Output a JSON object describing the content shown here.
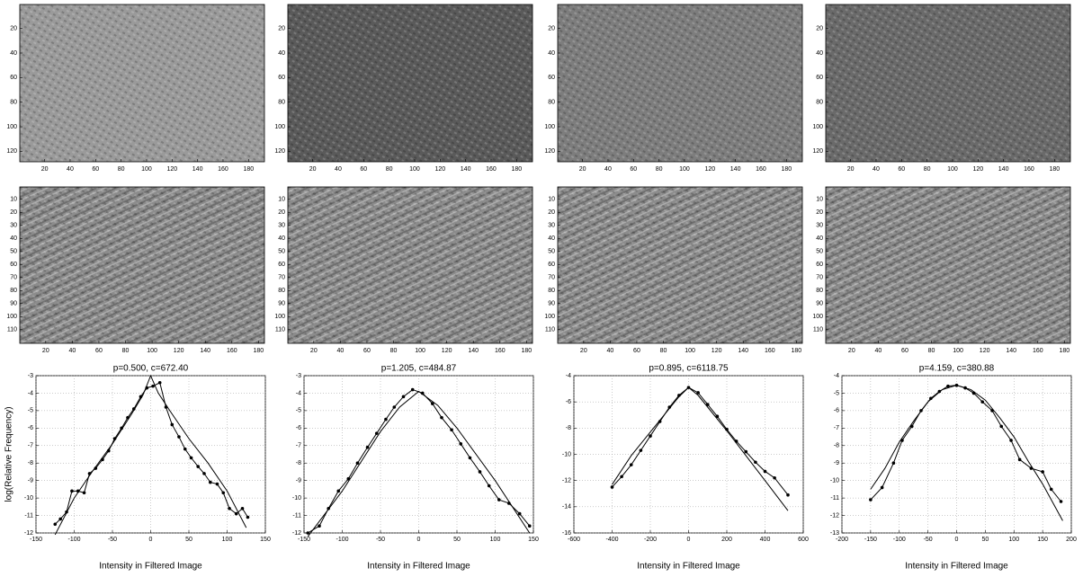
{
  "chart_data": [
    {
      "type": "image",
      "color": "#9a9a9a",
      "xlim": [
        0.5,
        192.5
      ],
      "ylim": [
        0.5,
        128.5
      ],
      "xticks": [
        20,
        40,
        60,
        80,
        100,
        120,
        140,
        160,
        180
      ],
      "yticks": [
        20,
        40,
        60,
        80,
        100,
        120
      ]
    },
    {
      "type": "image",
      "color": "#5a5a5a",
      "xlim": [
        0.5,
        192.5
      ],
      "ylim": [
        0.5,
        128.5
      ],
      "xticks": [
        20,
        40,
        60,
        80,
        100,
        120,
        140,
        160,
        180
      ],
      "yticks": [
        20,
        40,
        60,
        80,
        100,
        120
      ]
    },
    {
      "type": "image",
      "color": "#7d7d7d",
      "xlim": [
        0.5,
        192.5
      ],
      "ylim": [
        0.5,
        128.5
      ],
      "xticks": [
        20,
        40,
        60,
        80,
        100,
        120,
        140,
        160,
        180
      ],
      "yticks": [
        20,
        40,
        60,
        80,
        100,
        120
      ]
    },
    {
      "type": "image",
      "color": "#6a6a6a",
      "xlim": [
        0.5,
        192.5
      ],
      "ylim": [
        0.5,
        128.5
      ],
      "xticks": [
        20,
        40,
        60,
        80,
        100,
        120,
        140,
        160,
        180
      ],
      "yticks": [
        20,
        40,
        60,
        80,
        100,
        120
      ]
    },
    {
      "type": "image",
      "color": "#8c8c8c",
      "xlim": [
        0.5,
        184.5
      ],
      "ylim": [
        0.5,
        120.5
      ],
      "xticks": [
        20,
        40,
        60,
        80,
        100,
        120,
        140,
        160,
        180
      ],
      "yticks": [
        10,
        20,
        30,
        40,
        50,
        60,
        70,
        80,
        90,
        100,
        110
      ]
    },
    {
      "type": "image",
      "color": "#8c8c8c",
      "xlim": [
        0.5,
        184.5
      ],
      "ylim": [
        0.5,
        120.5
      ],
      "xticks": [
        20,
        40,
        60,
        80,
        100,
        120,
        140,
        160,
        180
      ],
      "yticks": [
        10,
        20,
        30,
        40,
        50,
        60,
        70,
        80,
        90,
        100,
        110
      ]
    },
    {
      "type": "image",
      "color": "#8c8c8c",
      "xlim": [
        0.5,
        184.5
      ],
      "ylim": [
        0.5,
        120.5
      ],
      "xticks": [
        20,
        40,
        60,
        80,
        100,
        120,
        140,
        160,
        180
      ],
      "yticks": [
        10,
        20,
        30,
        40,
        50,
        60,
        70,
        80,
        90,
        100,
        110
      ]
    },
    {
      "type": "image",
      "color": "#8c8c8c",
      "xlim": [
        0.5,
        184.5
      ],
      "ylim": [
        0.5,
        120.5
      ],
      "xticks": [
        20,
        40,
        60,
        80,
        100,
        120,
        140,
        160,
        180
      ],
      "yticks": [
        10,
        20,
        30,
        40,
        50,
        60,
        70,
        80,
        90,
        100,
        110
      ]
    },
    {
      "type": "line",
      "title": "p=0.500, c=672.40",
      "x_label": "Intensity in Filtered Image",
      "y_label": "log(Relative Frequency)",
      "grid": true,
      "xlim": [
        -150,
        150
      ],
      "xticks": [
        -150,
        -100,
        -50,
        0,
        50,
        100,
        150
      ],
      "ylim": [
        -12,
        -3
      ],
      "yticks": [
        -12,
        -11,
        -10,
        -9,
        -8,
        -7,
        -6,
        -5,
        -4,
        -3
      ],
      "series": [
        {
          "color": "#000000",
          "markers": true,
          "x": [
            -125,
            -118,
            -110,
            -103,
            -95,
            -87,
            -80,
            -72,
            -63,
            -55,
            -47,
            -38,
            -30,
            -22,
            -13,
            -5,
            3,
            12,
            20,
            28,
            37,
            45,
            53,
            62,
            70,
            78,
            87,
            95,
            103,
            112,
            120,
            127
          ],
          "values": [
            -11.5,
            -11.2,
            -10.8,
            -9.6,
            -9.6,
            -9.7,
            -8.6,
            -8.3,
            -7.8,
            -7.3,
            -6.6,
            -6.0,
            -5.4,
            -4.9,
            -4.2,
            -3.7,
            -3.6,
            -3.4,
            -4.8,
            -5.8,
            -6.5,
            -7.2,
            -7.7,
            -8.2,
            -8.6,
            -9.1,
            -9.2,
            -9.7,
            -10.6,
            -10.9,
            -10.6,
            -11.1
          ]
        },
        {
          "color": "#000000",
          "markers": false,
          "x": [
            -125,
            -100,
            -75,
            -50,
            -25,
            -10,
            0,
            10,
            25,
            50,
            75,
            100,
            125
          ],
          "values": [
            -12.1,
            -10.0,
            -8.4,
            -6.9,
            -5.2,
            -4.1,
            -3.0,
            -4.0,
            -5.0,
            -6.6,
            -8.0,
            -9.6,
            -11.7
          ]
        }
      ]
    },
    {
      "type": "line",
      "title": "p=1.205, c=484.87",
      "x_label": "Intensity in Filtered Image",
      "grid": true,
      "xlim": [
        -150,
        150
      ],
      "xticks": [
        -150,
        -100,
        -50,
        0,
        50,
        100,
        150
      ],
      "ylim": [
        -12,
        -3
      ],
      "yticks": [
        -12,
        -11,
        -10,
        -9,
        -8,
        -7,
        -6,
        -5,
        -4,
        -3
      ],
      "series": [
        {
          "color": "#000000",
          "markers": true,
          "x": [
            -145,
            -130,
            -118,
            -105,
            -92,
            -80,
            -67,
            -55,
            -43,
            -32,
            -20,
            -8,
            5,
            18,
            30,
            43,
            55,
            67,
            80,
            92,
            105,
            118,
            132,
            145
          ],
          "values": [
            -12.0,
            -11.6,
            -10.6,
            -9.6,
            -8.9,
            -8.0,
            -7.1,
            -6.3,
            -5.5,
            -4.8,
            -4.2,
            -3.8,
            -4.0,
            -4.6,
            -5.4,
            -6.1,
            -6.9,
            -7.7,
            -8.5,
            -9.3,
            -10.1,
            -10.3,
            -10.9,
            -11.6
          ]
        },
        {
          "color": "#000000",
          "markers": false,
          "x": [
            -145,
            -100,
            -50,
            -25,
            0,
            25,
            50,
            100,
            145
          ],
          "values": [
            -12.2,
            -9.6,
            -6.2,
            -4.8,
            -3.9,
            -4.7,
            -6.0,
            -9.0,
            -12.0
          ]
        }
      ]
    },
    {
      "type": "line",
      "title": "p=0.895, c=6118.75",
      "x_label": "Intensity in Filtered Image",
      "grid": true,
      "xlim": [
        -600,
        600
      ],
      "xticks": [
        -600,
        -400,
        -200,
        0,
        200,
        400,
        600
      ],
      "ylim": [
        -16,
        -4
      ],
      "yticks": [
        -16,
        -14,
        -12,
        -10,
        -8,
        -6,
        -4
      ],
      "series": [
        {
          "color": "#000000",
          "markers": true,
          "x": [
            -400,
            -350,
            -300,
            -250,
            -200,
            -150,
            -100,
            -50,
            0,
            50,
            100,
            150,
            200,
            250,
            300,
            350,
            400,
            450,
            520
          ],
          "values": [
            -12.5,
            -11.7,
            -10.8,
            -9.7,
            -8.6,
            -7.5,
            -6.4,
            -5.5,
            -4.9,
            -5.3,
            -6.2,
            -7.1,
            -8.1,
            -9.0,
            -9.8,
            -10.6,
            -11.3,
            -11.8,
            -13.1
          ]
        },
        {
          "color": "#000000",
          "markers": false,
          "x": [
            -400,
            -300,
            -200,
            -100,
            -50,
            0,
            50,
            100,
            200,
            300,
            400,
            520
          ],
          "values": [
            -12.3,
            -10.1,
            -8.3,
            -6.5,
            -5.6,
            -4.9,
            -5.5,
            -6.4,
            -8.2,
            -10.1,
            -12.0,
            -14.3
          ]
        }
      ]
    },
    {
      "type": "line",
      "title": "p=4.159, c=380.88",
      "x_label": "Intensity in Filtered Image",
      "grid": true,
      "xlim": [
        -200,
        200
      ],
      "xticks": [
        -200,
        -150,
        -100,
        -50,
        0,
        50,
        100,
        150,
        200
      ],
      "ylim": [
        -13,
        -4
      ],
      "yticks": [
        -13,
        -12,
        -11,
        -10,
        -9,
        -8,
        -7,
        -6,
        -5,
        -4
      ],
      "series": [
        {
          "color": "#000000",
          "markers": true,
          "x": [
            -150,
            -130,
            -110,
            -95,
            -78,
            -62,
            -45,
            -30,
            -15,
            0,
            15,
            30,
            45,
            62,
            78,
            95,
            110,
            130,
            150,
            165,
            182
          ],
          "values": [
            -11.1,
            -10.4,
            -9.0,
            -7.7,
            -6.9,
            -6.0,
            -5.3,
            -4.9,
            -4.6,
            -4.55,
            -4.7,
            -5.0,
            -5.5,
            -6.0,
            -6.9,
            -7.7,
            -8.8,
            -9.3,
            -9.5,
            -10.5,
            -11.2
          ]
        },
        {
          "color": "#000000",
          "markers": false,
          "x": [
            -150,
            -125,
            -100,
            -75,
            -50,
            -25,
            0,
            25,
            50,
            75,
            100,
            125,
            150,
            185
          ],
          "values": [
            -10.5,
            -9.3,
            -7.8,
            -6.6,
            -5.5,
            -4.8,
            -4.55,
            -4.8,
            -5.4,
            -6.4,
            -7.5,
            -8.9,
            -10.2,
            -12.3
          ]
        }
      ]
    }
  ]
}
